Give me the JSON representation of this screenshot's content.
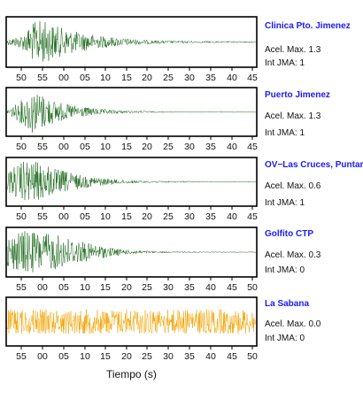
{
  "xaxis_title": "Tiempo (s)",
  "colors": {
    "trace_green": "#1e6b1e",
    "trace_orange": "#f5a300",
    "station_name": "#1a1aff"
  },
  "stations": [
    {
      "name": "Clinica Pto. Jimenez",
      "accel_text": "Acel. Max. 1.3",
      "jma_text": "Int JMA: 1",
      "tick_labels": [
        "50",
        "55",
        "00",
        "05",
        "10",
        "15",
        "20",
        "25",
        "30",
        "35",
        "40",
        "45"
      ],
      "color": "#1e6b1e"
    },
    {
      "name": "Puerto Jimenez",
      "accel_text": "Acel. Max. 1.3",
      "jma_text": "Int JMA: 1",
      "tick_labels": [
        "50",
        "55",
        "00",
        "05",
        "10",
        "15",
        "20",
        "25",
        "30",
        "35",
        "40",
        "45"
      ],
      "color": "#1e6b1e"
    },
    {
      "name": "OV−Las Cruces, Puntar",
      "accel_text": "Acel. Max. 0.6",
      "jma_text": "Int JMA: 1",
      "tick_labels": [
        "50",
        "55",
        "00",
        "05",
        "10",
        "15",
        "20",
        "25",
        "30",
        "35",
        "40",
        "45"
      ],
      "color": "#1e6b1e"
    },
    {
      "name": "Golfito CTP",
      "accel_text": "Acel. Max. 0.3",
      "jma_text": "Int JMA: 0",
      "tick_labels": [
        "55",
        "00",
        "05",
        "10",
        "15",
        "20",
        "25",
        "30",
        "35",
        "40",
        "45",
        "50"
      ],
      "color": "#1e6b1e"
    },
    {
      "name": "La Sabana",
      "accel_text": "Acel. Max. 0.0",
      "jma_text": "Int JMA: 0",
      "tick_labels": [
        "55",
        "00",
        "05",
        "10",
        "15",
        "20",
        "25",
        "30",
        "35",
        "40",
        "45",
        "50"
      ],
      "color": "#f5a300"
    }
  ],
  "chart_data": [
    {
      "type": "line",
      "title": "Clinica Pto. Jimenez",
      "xlabel": "",
      "ylabel": "",
      "x_tick_labels": [
        "50",
        "55",
        "00",
        "05",
        "10",
        "15",
        "20",
        "25",
        "30",
        "35",
        "40",
        "45"
      ],
      "series": [
        {
          "envelope": [
            0.1,
            0.2,
            0.35,
            0.8,
            0.95,
            0.8,
            0.65,
            0.55,
            0.45,
            0.38,
            0.32,
            0.26,
            0.22,
            0.18,
            0.15,
            0.12,
            0.1,
            0.08,
            0.07,
            0.06,
            0.05,
            0.05,
            0.04,
            0.04,
            0.04,
            0.03,
            0.03,
            0.03,
            0.03,
            0.03
          ]
        }
      ]
    },
    {
      "type": "line",
      "title": "Puerto Jimenez",
      "xlabel": "",
      "ylabel": "",
      "x_tick_labels": [
        "50",
        "55",
        "00",
        "05",
        "10",
        "15",
        "20",
        "25",
        "30",
        "35",
        "40",
        "45"
      ],
      "series": [
        {
          "envelope": [
            0.1,
            0.3,
            0.6,
            0.95,
            0.8,
            0.6,
            0.45,
            0.35,
            0.28,
            0.22,
            0.17,
            0.13,
            0.1,
            0.08,
            0.06,
            0.05,
            0.04,
            0.03,
            0.03,
            0.02,
            0.02,
            0.02,
            0.02,
            0.02,
            0.02,
            0.02,
            0.02,
            0.02,
            0.02,
            0.02
          ]
        }
      ]
    },
    {
      "type": "line",
      "title": "OV−Las Cruces, Puntar",
      "xlabel": "",
      "ylabel": "",
      "x_tick_labels": [
        "50",
        "55",
        "00",
        "05",
        "10",
        "15",
        "20",
        "25",
        "30",
        "35",
        "40",
        "45"
      ],
      "series": [
        {
          "envelope": [
            0.4,
            0.7,
            0.9,
            0.95,
            0.8,
            0.7,
            0.55,
            0.45,
            0.35,
            0.28,
            0.22,
            0.17,
            0.13,
            0.1,
            0.08,
            0.06,
            0.05,
            0.04,
            0.04,
            0.03,
            0.03,
            0.03,
            0.02,
            0.02,
            0.02,
            0.02,
            0.02,
            0.02,
            0.02,
            0.02
          ]
        }
      ]
    },
    {
      "type": "line",
      "title": "Golfito CTP",
      "xlabel": "",
      "ylabel": "",
      "x_tick_labels": [
        "55",
        "00",
        "05",
        "10",
        "15",
        "20",
        "25",
        "30",
        "35",
        "40",
        "45",
        "50"
      ],
      "series": [
        {
          "envelope": [
            0.6,
            0.8,
            0.95,
            0.9,
            0.85,
            0.8,
            0.75,
            0.65,
            0.55,
            0.45,
            0.35,
            0.28,
            0.2,
            0.15,
            0.1,
            0.08,
            0.06,
            0.05,
            0.04,
            0.03,
            0.03,
            0.03,
            0.03,
            0.02,
            0.02,
            0.02,
            0.02,
            0.02,
            0.02,
            0.02
          ]
        }
      ]
    },
    {
      "type": "line",
      "title": "La Sabana",
      "xlabel": "Tiempo (s)",
      "ylabel": "",
      "x_tick_labels": [
        "55",
        "00",
        "05",
        "10",
        "15",
        "20",
        "25",
        "30",
        "35",
        "40",
        "45",
        "50"
      ],
      "series": [
        {
          "envelope": [
            0.55,
            0.55,
            0.55,
            0.55,
            0.55,
            0.55,
            0.55,
            0.55,
            0.55,
            0.55,
            0.55,
            0.55,
            0.55,
            0.55,
            0.55,
            0.55,
            0.55,
            0.55,
            0.55,
            0.55,
            0.55,
            0.55,
            0.55,
            0.55,
            0.55,
            0.55,
            0.55,
            0.55,
            0.55,
            0.55
          ]
        }
      ]
    }
  ]
}
